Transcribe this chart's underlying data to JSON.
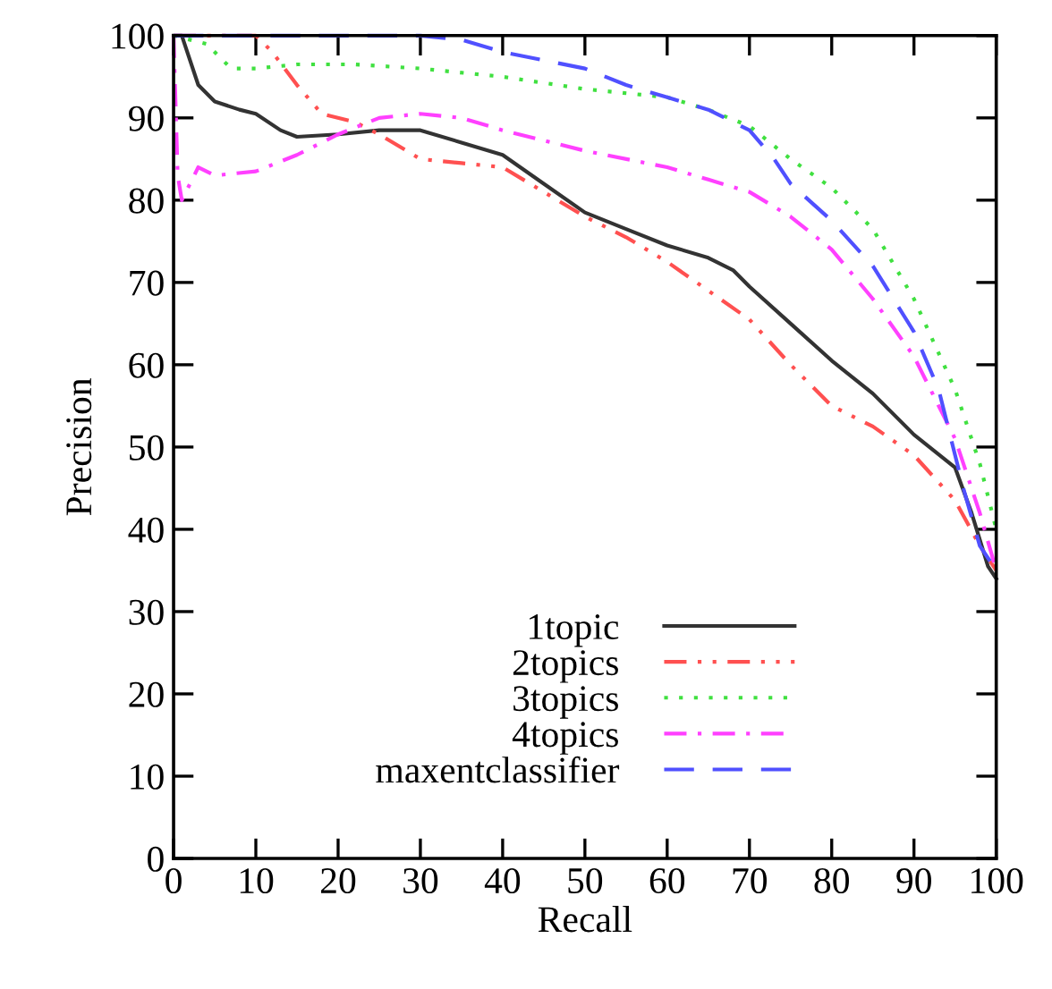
{
  "chart_data": {
    "type": "line",
    "xlabel": "Recall",
    "ylabel": "Precision",
    "xlim": [
      0,
      100
    ],
    "ylim": [
      0,
      100
    ],
    "xticks": [
      0,
      10,
      20,
      30,
      40,
      50,
      60,
      70,
      80,
      90,
      100
    ],
    "yticks": [
      0,
      10,
      20,
      30,
      40,
      50,
      60,
      70,
      80,
      90,
      100
    ],
    "grid": false,
    "legend": "bottom",
    "marker": "none",
    "series": [
      {
        "name": "1topic",
        "color": "#333333",
        "line_style": "solid",
        "x": [
          0,
          1,
          3,
          5,
          8,
          10,
          13,
          15,
          20,
          25,
          30,
          35,
          40,
          45,
          50,
          55,
          60,
          65,
          68,
          70,
          75,
          80,
          85,
          90,
          95,
          97,
          99,
          100
        ],
        "values": [
          100,
          100,
          94,
          92,
          91,
          90.5,
          88.5,
          87.7,
          88,
          88.5,
          88.5,
          87,
          85.5,
          82,
          78.5,
          76.5,
          74.5,
          73,
          71.5,
          69.5,
          65,
          60.5,
          56.5,
          51.5,
          47.5,
          42,
          35.5,
          34
        ]
      },
      {
        "name": "2topics",
        "color": "#ff5050",
        "line_style": "dashdotdot",
        "x": [
          0,
          10,
          12,
          15,
          18,
          22,
          25,
          30,
          35,
          40,
          45,
          50,
          55,
          60,
          65,
          70,
          75,
          80,
          85,
          90,
          95,
          98,
          100
        ],
        "values": [
          100,
          100,
          98,
          94,
          90.5,
          89.5,
          88,
          85,
          84.5,
          84,
          81,
          78,
          75.5,
          72.5,
          69,
          65.5,
          60,
          55,
          52.5,
          49,
          43.5,
          38,
          35
        ]
      },
      {
        "name": "3topics",
        "color": "#40e040",
        "line_style": "dotted",
        "x": [
          0,
          4,
          7,
          10,
          15,
          22,
          30,
          40,
          50,
          60,
          65,
          70,
          75,
          80,
          85,
          90,
          95,
          98,
          100
        ],
        "values": [
          100,
          99,
          96,
          96,
          96.5,
          96.5,
          96,
          95,
          93.5,
          92.5,
          91,
          89,
          85,
          81.5,
          76.5,
          68,
          57,
          48,
          40
        ]
      },
      {
        "name": "4topics",
        "color": "#ff40ff",
        "line_style": "dashdot",
        "x": [
          0,
          0.5,
          1,
          3,
          5,
          10,
          15,
          20,
          25,
          30,
          35,
          40,
          50,
          60,
          65,
          70,
          75,
          80,
          85,
          90,
          95,
          98,
          100
        ],
        "values": [
          100,
          83,
          80,
          84,
          83,
          83.5,
          85.5,
          88,
          90,
          90.5,
          90,
          88.5,
          86,
          84,
          82.5,
          81,
          78,
          74,
          68,
          61,
          51,
          42,
          35
        ]
      },
      {
        "name": "maxentclassifier",
        "color": "#5050ff",
        "line_style": "dashed",
        "x": [
          0,
          30,
          35,
          40,
          45,
          50,
          55,
          60,
          65,
          70,
          73,
          75,
          80,
          85,
          90,
          93,
          96,
          98,
          100
        ],
        "values": [
          100,
          100,
          99.5,
          98,
          97,
          96,
          94,
          92.5,
          91,
          88.5,
          85,
          82,
          77.5,
          72,
          64,
          57,
          45,
          38,
          35
        ]
      }
    ]
  }
}
